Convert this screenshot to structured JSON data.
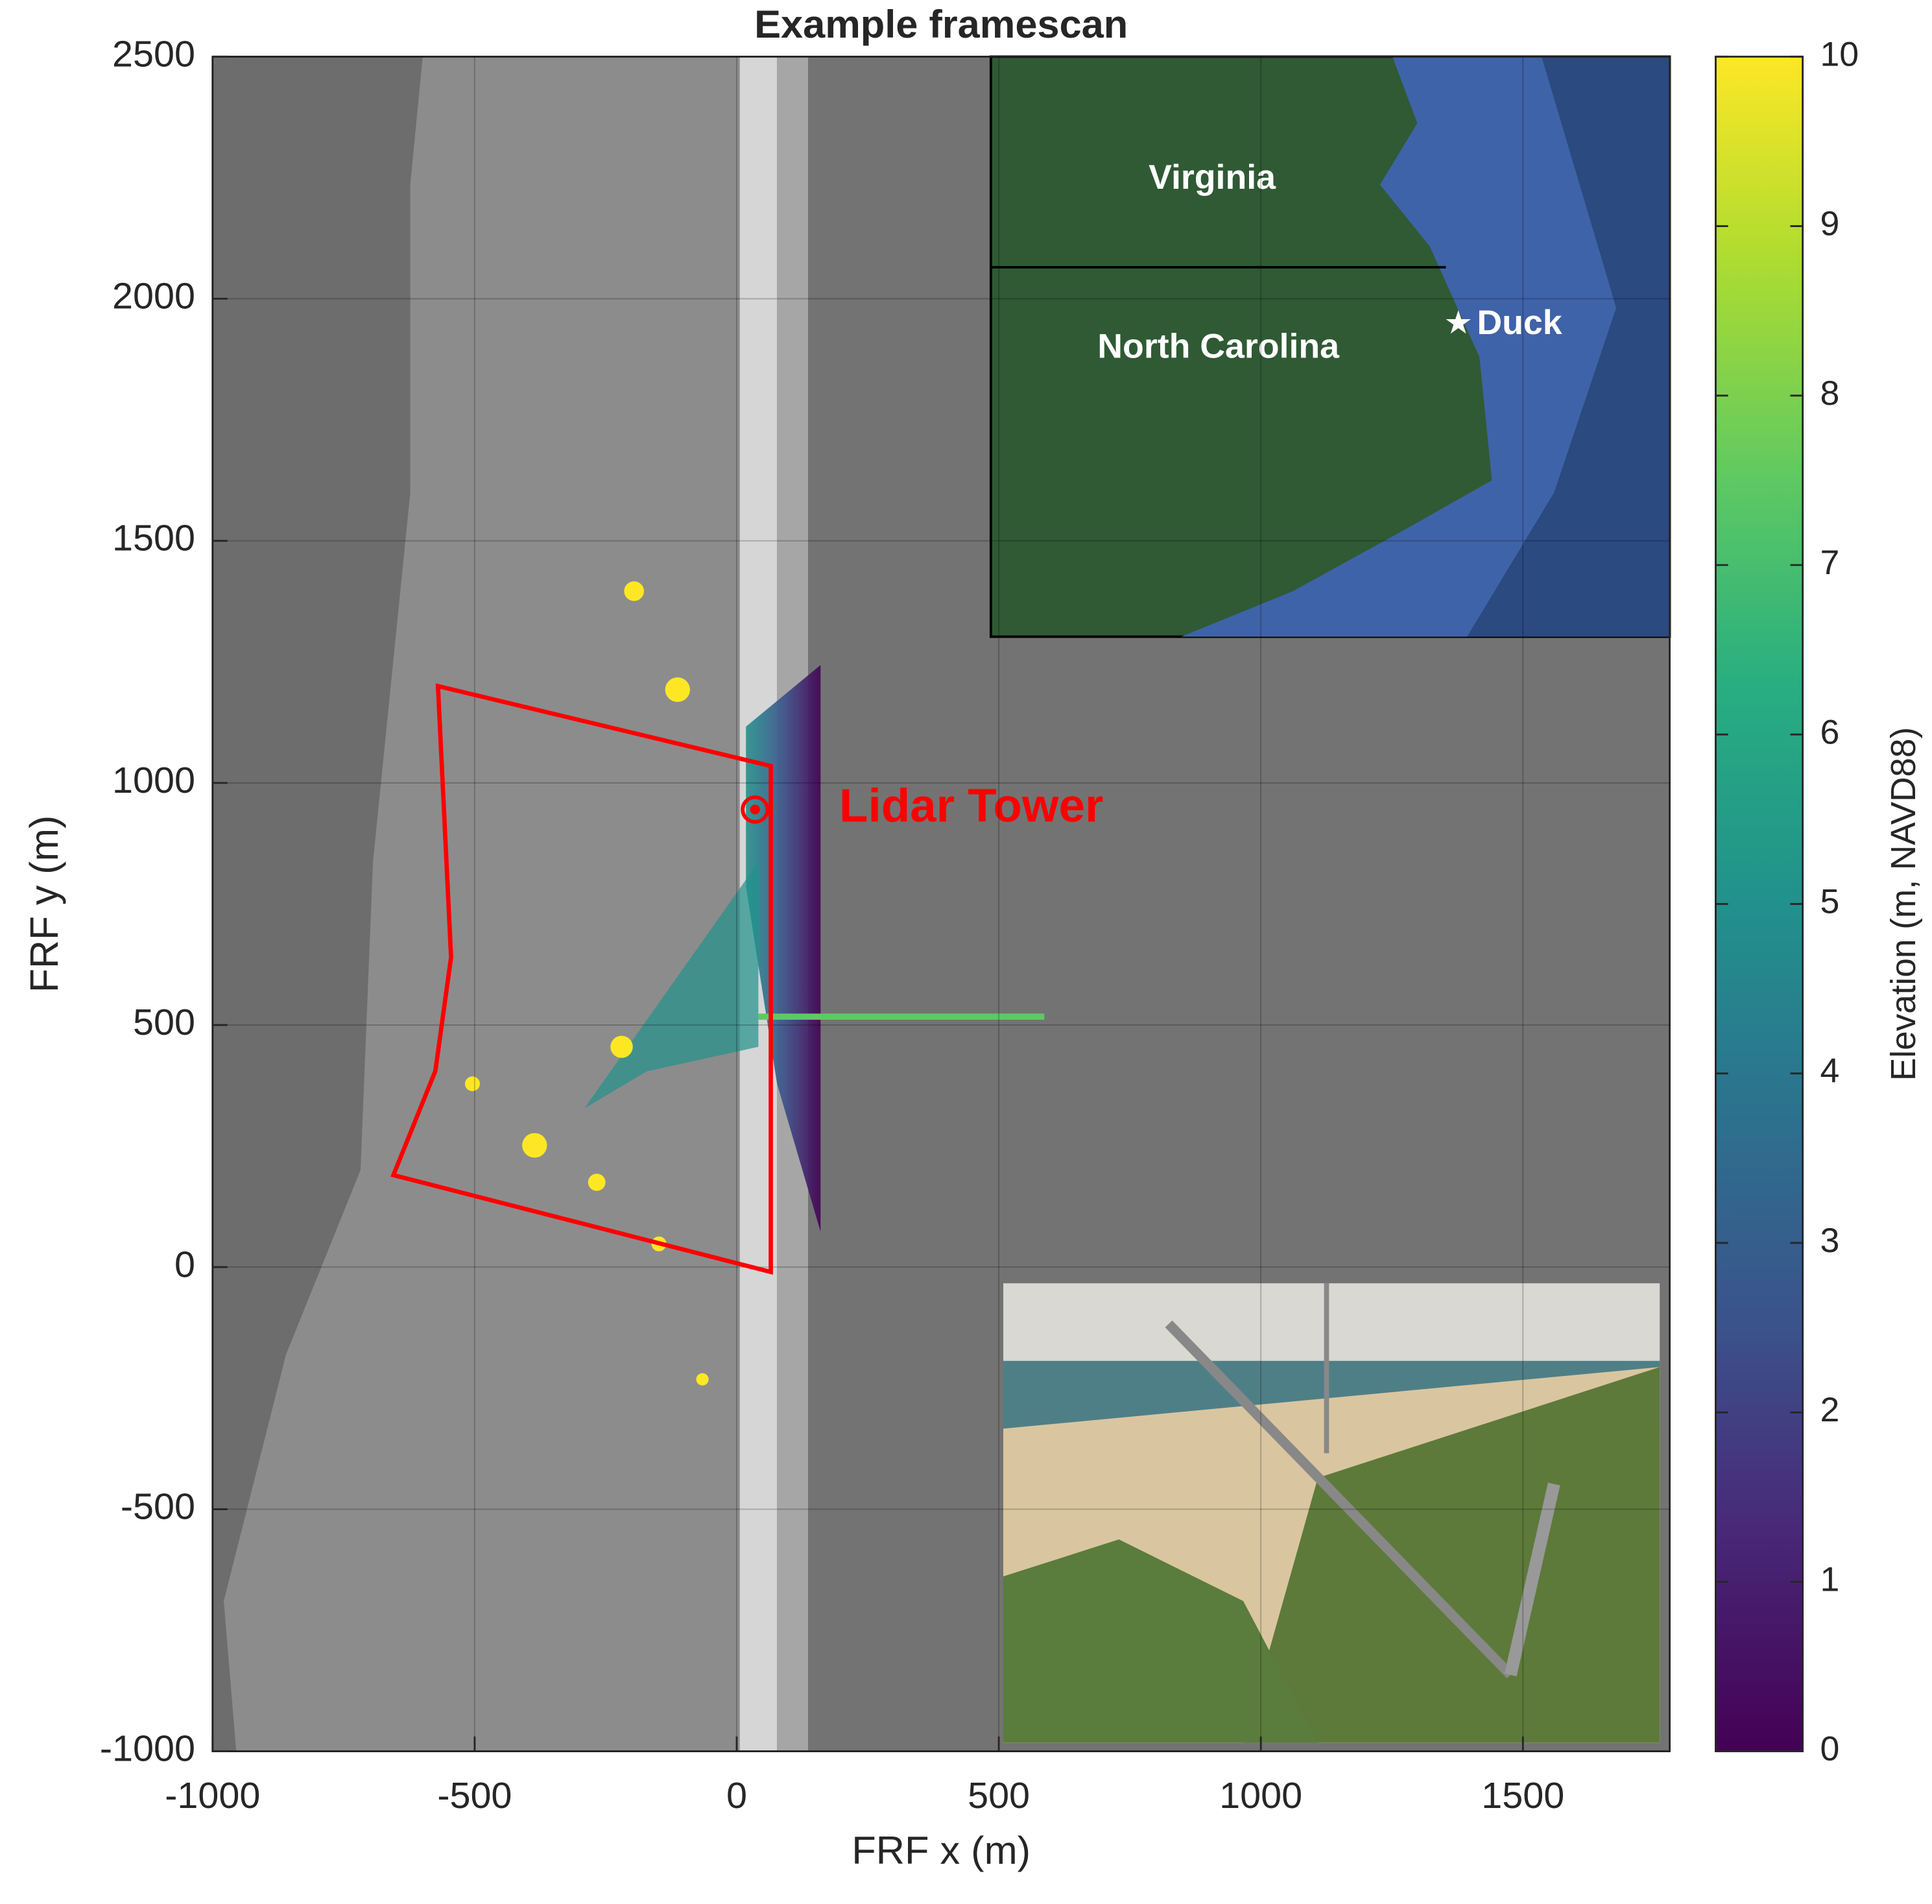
{
  "chart_data": {
    "type": "image",
    "title": "Example framescan",
    "xlabel": "FRF x (m)",
    "ylabel": "FRF y (m)",
    "xlim": [
      -1000,
      1780
    ],
    "ylim": [
      -1000,
      2500
    ],
    "xticks": [
      -1000,
      -500,
      0,
      500,
      1000,
      1500
    ],
    "yticks": [
      -1000,
      -500,
      0,
      500,
      1000,
      1500,
      2000,
      2500
    ],
    "grid": true,
    "outline": {
      "color": "#ff0000",
      "x": [
        -570,
        65,
        65,
        -655,
        -575,
        -545
      ],
      "y": [
        1200,
        1035,
        -10,
        190,
        405,
        640
      ]
    },
    "tower": {
      "color": "#ff0000",
      "x": 35,
      "y": 945
    },
    "annotations": [
      "Lidar Tower"
    ],
    "inset_map": {
      "labels": [
        "Virginia",
        "North Carolina",
        "Duck"
      ]
    },
    "colorbar": {
      "colormap": "viridis",
      "label": "Elevation (m, NAVD88)",
      "clim": [
        0,
        10
      ],
      "ticks": [
        0,
        1,
        2,
        3,
        4,
        5,
        6,
        7,
        8,
        9,
        10
      ]
    }
  }
}
